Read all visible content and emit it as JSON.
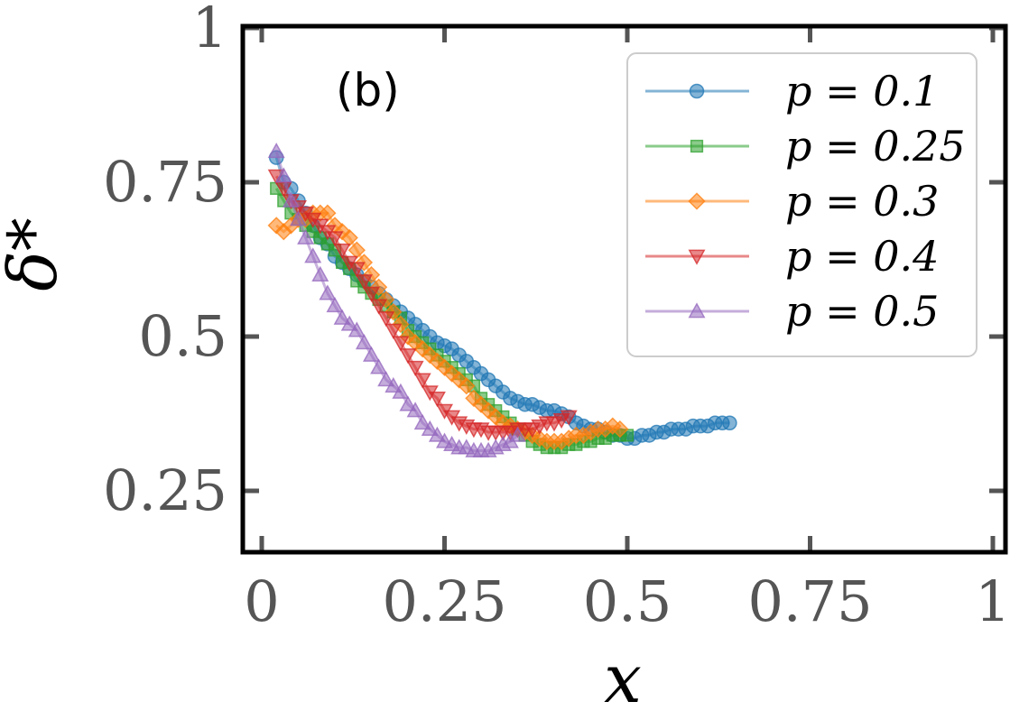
{
  "chart_data": {
    "type": "scatter",
    "panel_label": "(b)",
    "xlabel": "x",
    "ylabel": "δ*",
    "xlim": [
      -0.02,
      1.0
    ],
    "ylim": [
      0.155,
      1.0
    ],
    "xticks": [
      0,
      0.25,
      0.5,
      0.75,
      1
    ],
    "xtick_labels": [
      "0",
      "0.25",
      "0.5",
      "0.75",
      "1"
    ],
    "yticks": [
      0.25,
      0.5,
      0.75,
      1
    ],
    "ytick_labels": [
      "0.25",
      "0.5",
      "0.75",
      "1"
    ],
    "grid": false,
    "legend_position": "top-right",
    "series": [
      {
        "name": "p = 0.1",
        "label": "p = 0.1",
        "color": "#1f77b4",
        "marker": "circle",
        "points": [
          [
            0.02,
            0.79
          ],
          [
            0.03,
            0.75
          ],
          [
            0.04,
            0.74
          ],
          [
            0.05,
            0.72
          ],
          [
            0.06,
            0.7
          ],
          [
            0.07,
            0.68
          ],
          [
            0.08,
            0.66
          ],
          [
            0.09,
            0.65
          ],
          [
            0.1,
            0.63
          ],
          [
            0.11,
            0.62
          ],
          [
            0.12,
            0.61
          ],
          [
            0.13,
            0.6
          ],
          [
            0.14,
            0.59
          ],
          [
            0.15,
            0.58
          ],
          [
            0.16,
            0.57
          ],
          [
            0.17,
            0.56
          ],
          [
            0.18,
            0.55
          ],
          [
            0.19,
            0.54
          ],
          [
            0.2,
            0.53
          ],
          [
            0.21,
            0.52
          ],
          [
            0.22,
            0.51
          ],
          [
            0.23,
            0.5
          ],
          [
            0.24,
            0.49
          ],
          [
            0.25,
            0.485
          ],
          [
            0.26,
            0.48
          ],
          [
            0.27,
            0.47
          ],
          [
            0.28,
            0.46
          ],
          [
            0.29,
            0.45
          ],
          [
            0.3,
            0.44
          ],
          [
            0.31,
            0.43
          ],
          [
            0.32,
            0.42
          ],
          [
            0.33,
            0.41
          ],
          [
            0.34,
            0.4
          ],
          [
            0.35,
            0.395
          ],
          [
            0.36,
            0.39
          ],
          [
            0.37,
            0.39
          ],
          [
            0.38,
            0.385
          ],
          [
            0.39,
            0.38
          ],
          [
            0.4,
            0.38
          ],
          [
            0.41,
            0.375
          ],
          [
            0.42,
            0.37
          ],
          [
            0.43,
            0.36
          ],
          [
            0.44,
            0.355
          ],
          [
            0.45,
            0.35
          ],
          [
            0.46,
            0.35
          ],
          [
            0.47,
            0.345
          ],
          [
            0.48,
            0.34
          ],
          [
            0.49,
            0.34
          ],
          [
            0.5,
            0.335
          ],
          [
            0.51,
            0.335
          ],
          [
            0.52,
            0.34
          ],
          [
            0.53,
            0.34
          ],
          [
            0.54,
            0.345
          ],
          [
            0.55,
            0.345
          ],
          [
            0.56,
            0.35
          ],
          [
            0.57,
            0.35
          ],
          [
            0.58,
            0.35
          ],
          [
            0.59,
            0.355
          ],
          [
            0.6,
            0.355
          ],
          [
            0.61,
            0.355
          ],
          [
            0.62,
            0.36
          ],
          [
            0.63,
            0.36
          ],
          [
            0.64,
            0.36
          ]
        ]
      },
      {
        "name": "p = 0.25",
        "label": "p = 0.25",
        "color": "#2ca02c",
        "marker": "square",
        "points": [
          [
            0.02,
            0.74
          ],
          [
            0.03,
            0.72
          ],
          [
            0.04,
            0.7
          ],
          [
            0.05,
            0.69
          ],
          [
            0.06,
            0.68
          ],
          [
            0.07,
            0.67
          ],
          [
            0.08,
            0.66
          ],
          [
            0.09,
            0.65
          ],
          [
            0.1,
            0.64
          ],
          [
            0.11,
            0.62
          ],
          [
            0.12,
            0.61
          ],
          [
            0.13,
            0.59
          ],
          [
            0.14,
            0.58
          ],
          [
            0.15,
            0.57
          ],
          [
            0.16,
            0.56
          ],
          [
            0.17,
            0.55
          ],
          [
            0.18,
            0.54
          ],
          [
            0.19,
            0.53
          ],
          [
            0.2,
            0.51
          ],
          [
            0.21,
            0.5
          ],
          [
            0.22,
            0.49
          ],
          [
            0.23,
            0.48
          ],
          [
            0.24,
            0.47
          ],
          [
            0.25,
            0.46
          ],
          [
            0.26,
            0.45
          ],
          [
            0.27,
            0.44
          ],
          [
            0.28,
            0.43
          ],
          [
            0.29,
            0.42
          ],
          [
            0.3,
            0.4
          ],
          [
            0.31,
            0.39
          ],
          [
            0.32,
            0.38
          ],
          [
            0.33,
            0.37
          ],
          [
            0.34,
            0.36
          ],
          [
            0.35,
            0.35
          ],
          [
            0.36,
            0.34
          ],
          [
            0.37,
            0.33
          ],
          [
            0.38,
            0.325
          ],
          [
            0.39,
            0.32
          ],
          [
            0.4,
            0.32
          ],
          [
            0.41,
            0.32
          ],
          [
            0.42,
            0.325
          ],
          [
            0.43,
            0.325
          ],
          [
            0.44,
            0.33
          ],
          [
            0.45,
            0.33
          ],
          [
            0.46,
            0.335
          ],
          [
            0.47,
            0.335
          ],
          [
            0.48,
            0.34
          ],
          [
            0.49,
            0.34
          ],
          [
            0.5,
            0.34
          ]
        ]
      },
      {
        "name": "p = 0.3",
        "label": "p = 0.3",
        "color": "#ff7f0e",
        "marker": "diamond",
        "points": [
          [
            0.02,
            0.68
          ],
          [
            0.03,
            0.67
          ],
          [
            0.04,
            0.68
          ],
          [
            0.05,
            0.69
          ],
          [
            0.06,
            0.69
          ],
          [
            0.07,
            0.7
          ],
          [
            0.08,
            0.7
          ],
          [
            0.09,
            0.7
          ],
          [
            0.1,
            0.68
          ],
          [
            0.11,
            0.67
          ],
          [
            0.12,
            0.66
          ],
          [
            0.13,
            0.64
          ],
          [
            0.14,
            0.62
          ],
          [
            0.15,
            0.6
          ],
          [
            0.16,
            0.58
          ],
          [
            0.17,
            0.56
          ],
          [
            0.18,
            0.54
          ],
          [
            0.19,
            0.52
          ],
          [
            0.2,
            0.5
          ],
          [
            0.21,
            0.49
          ],
          [
            0.22,
            0.48
          ],
          [
            0.23,
            0.47
          ],
          [
            0.24,
            0.46
          ],
          [
            0.25,
            0.45
          ],
          [
            0.26,
            0.44
          ],
          [
            0.27,
            0.43
          ],
          [
            0.28,
            0.42
          ],
          [
            0.29,
            0.4
          ],
          [
            0.3,
            0.39
          ],
          [
            0.31,
            0.38
          ],
          [
            0.32,
            0.37
          ],
          [
            0.33,
            0.36
          ],
          [
            0.34,
            0.355
          ],
          [
            0.35,
            0.35
          ],
          [
            0.36,
            0.345
          ],
          [
            0.37,
            0.34
          ],
          [
            0.38,
            0.335
          ],
          [
            0.39,
            0.33
          ],
          [
            0.4,
            0.33
          ],
          [
            0.41,
            0.33
          ],
          [
            0.42,
            0.335
          ],
          [
            0.43,
            0.34
          ],
          [
            0.44,
            0.34
          ],
          [
            0.45,
            0.345
          ],
          [
            0.46,
            0.35
          ],
          [
            0.47,
            0.35
          ],
          [
            0.48,
            0.355
          ],
          [
            0.49,
            0.35
          ]
        ]
      },
      {
        "name": "p = 0.4",
        "label": "p = 0.4",
        "color": "#d62728",
        "marker": "triangle-down",
        "points": [
          [
            0.02,
            0.76
          ],
          [
            0.03,
            0.74
          ],
          [
            0.04,
            0.72
          ],
          [
            0.05,
            0.71
          ],
          [
            0.06,
            0.7
          ],
          [
            0.07,
            0.69
          ],
          [
            0.08,
            0.68
          ],
          [
            0.09,
            0.67
          ],
          [
            0.1,
            0.66
          ],
          [
            0.11,
            0.64
          ],
          [
            0.12,
            0.62
          ],
          [
            0.13,
            0.61
          ],
          [
            0.14,
            0.59
          ],
          [
            0.15,
            0.57
          ],
          [
            0.16,
            0.55
          ],
          [
            0.17,
            0.53
          ],
          [
            0.18,
            0.51
          ],
          [
            0.19,
            0.49
          ],
          [
            0.2,
            0.47
          ],
          [
            0.21,
            0.45
          ],
          [
            0.22,
            0.43
          ],
          [
            0.23,
            0.41
          ],
          [
            0.24,
            0.4
          ],
          [
            0.25,
            0.38
          ],
          [
            0.26,
            0.37
          ],
          [
            0.27,
            0.36
          ],
          [
            0.28,
            0.355
          ],
          [
            0.29,
            0.35
          ],
          [
            0.3,
            0.35
          ],
          [
            0.31,
            0.345
          ],
          [
            0.32,
            0.345
          ],
          [
            0.33,
            0.345
          ],
          [
            0.34,
            0.345
          ],
          [
            0.35,
            0.35
          ],
          [
            0.36,
            0.35
          ],
          [
            0.37,
            0.35
          ],
          [
            0.38,
            0.355
          ],
          [
            0.39,
            0.36
          ],
          [
            0.4,
            0.36
          ],
          [
            0.41,
            0.365
          ],
          [
            0.42,
            0.37
          ]
        ]
      },
      {
        "name": "p = 0.5",
        "label": "p = 0.5",
        "color": "#9467bd",
        "marker": "triangle-up",
        "points": [
          [
            0.02,
            0.8
          ],
          [
            0.03,
            0.76
          ],
          [
            0.04,
            0.72
          ],
          [
            0.05,
            0.69
          ],
          [
            0.06,
            0.66
          ],
          [
            0.07,
            0.63
          ],
          [
            0.08,
            0.6
          ],
          [
            0.09,
            0.57
          ],
          [
            0.1,
            0.55
          ],
          [
            0.11,
            0.53
          ],
          [
            0.12,
            0.52
          ],
          [
            0.13,
            0.51
          ],
          [
            0.14,
            0.49
          ],
          [
            0.15,
            0.47
          ],
          [
            0.16,
            0.45
          ],
          [
            0.17,
            0.43
          ],
          [
            0.18,
            0.42
          ],
          [
            0.19,
            0.41
          ],
          [
            0.2,
            0.39
          ],
          [
            0.21,
            0.38
          ],
          [
            0.22,
            0.36
          ],
          [
            0.23,
            0.35
          ],
          [
            0.24,
            0.34
          ],
          [
            0.25,
            0.33
          ],
          [
            0.26,
            0.325
          ],
          [
            0.27,
            0.32
          ],
          [
            0.28,
            0.32
          ],
          [
            0.29,
            0.315
          ],
          [
            0.3,
            0.315
          ],
          [
            0.31,
            0.315
          ],
          [
            0.32,
            0.32
          ],
          [
            0.33,
            0.325
          ],
          [
            0.34,
            0.33
          ],
          [
            0.35,
            0.34
          ]
        ]
      }
    ]
  }
}
